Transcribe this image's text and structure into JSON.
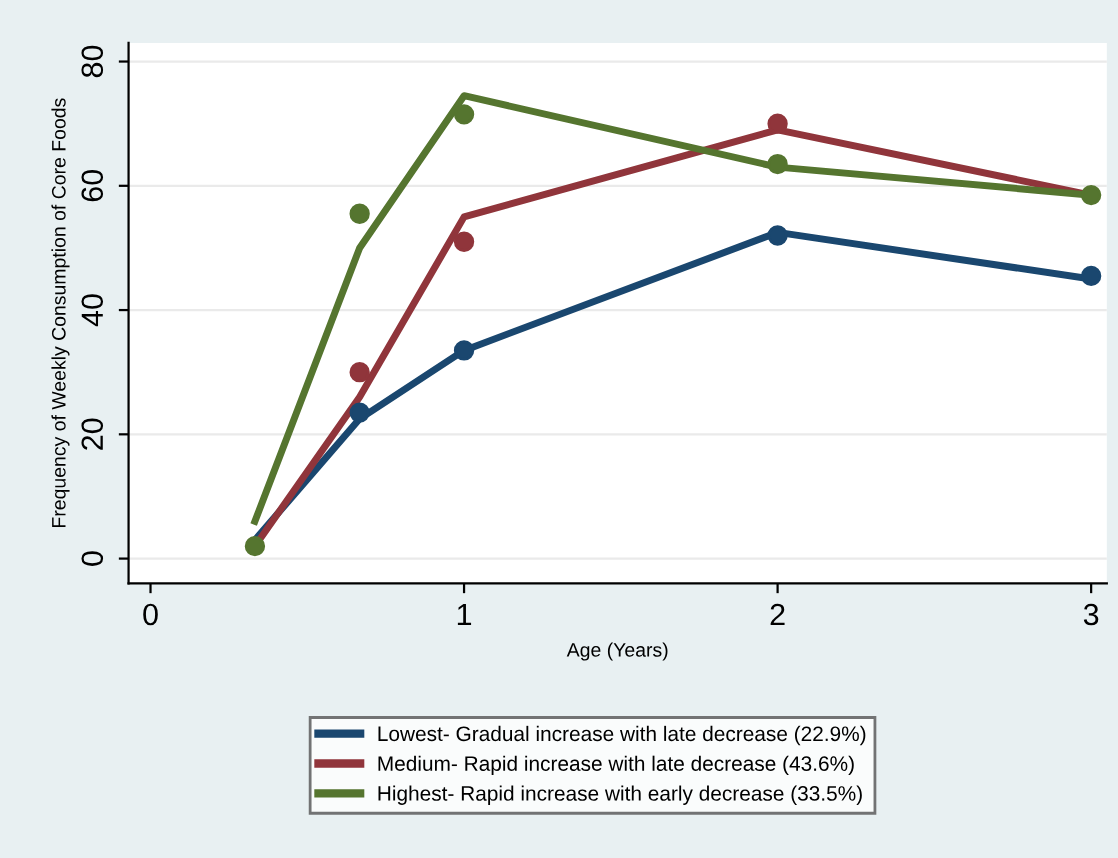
{
  "chart_data": {
    "type": "line",
    "xlabel": "Age (Years)",
    "ylabel": "Frequency of Weekly Consumption of Core Foods",
    "x": [
      0.333,
      0.667,
      1,
      2,
      3
    ],
    "series": [
      {
        "name": "Lowest- Gradual increase with late decrease (22.9%)",
        "color": "#1a476f",
        "values": [
          3,
          22.5,
          33.5,
          52.5,
          45
        ]
      },
      {
        "name": "Medium- Rapid increase with late decrease (43.6%)",
        "color": "#90353b",
        "values": [
          2,
          26,
          55,
          69,
          58.5
        ]
      },
      {
        "name": "Highest- Rapid increase with early decrease (33.5%)",
        "color": "#55752f",
        "values": [
          6,
          50,
          74.5,
          63,
          58.5
        ]
      },
      {
        "type": "scatter",
        "marker": "circle",
        "color": "#1a476f",
        "values": [
          null,
          23.5,
          33.5,
          52,
          45.5
        ]
      },
      {
        "type": "scatter",
        "marker": "circle",
        "color": "#90353b",
        "values": [
          null,
          30,
          51,
          70,
          null
        ]
      },
      {
        "type": "scatter",
        "marker": "circle",
        "color": "#55752f",
        "values": [
          2,
          55.5,
          71.5,
          63.5,
          58.5
        ]
      }
    ],
    "xlim": [
      -0.07,
      3.05
    ],
    "xticks": [
      0,
      1,
      2,
      3
    ],
    "ylim": [
      -4,
      83
    ],
    "yticks": [
      0,
      20,
      40,
      60,
      80
    ],
    "grid": "y",
    "legend": "bottom"
  }
}
